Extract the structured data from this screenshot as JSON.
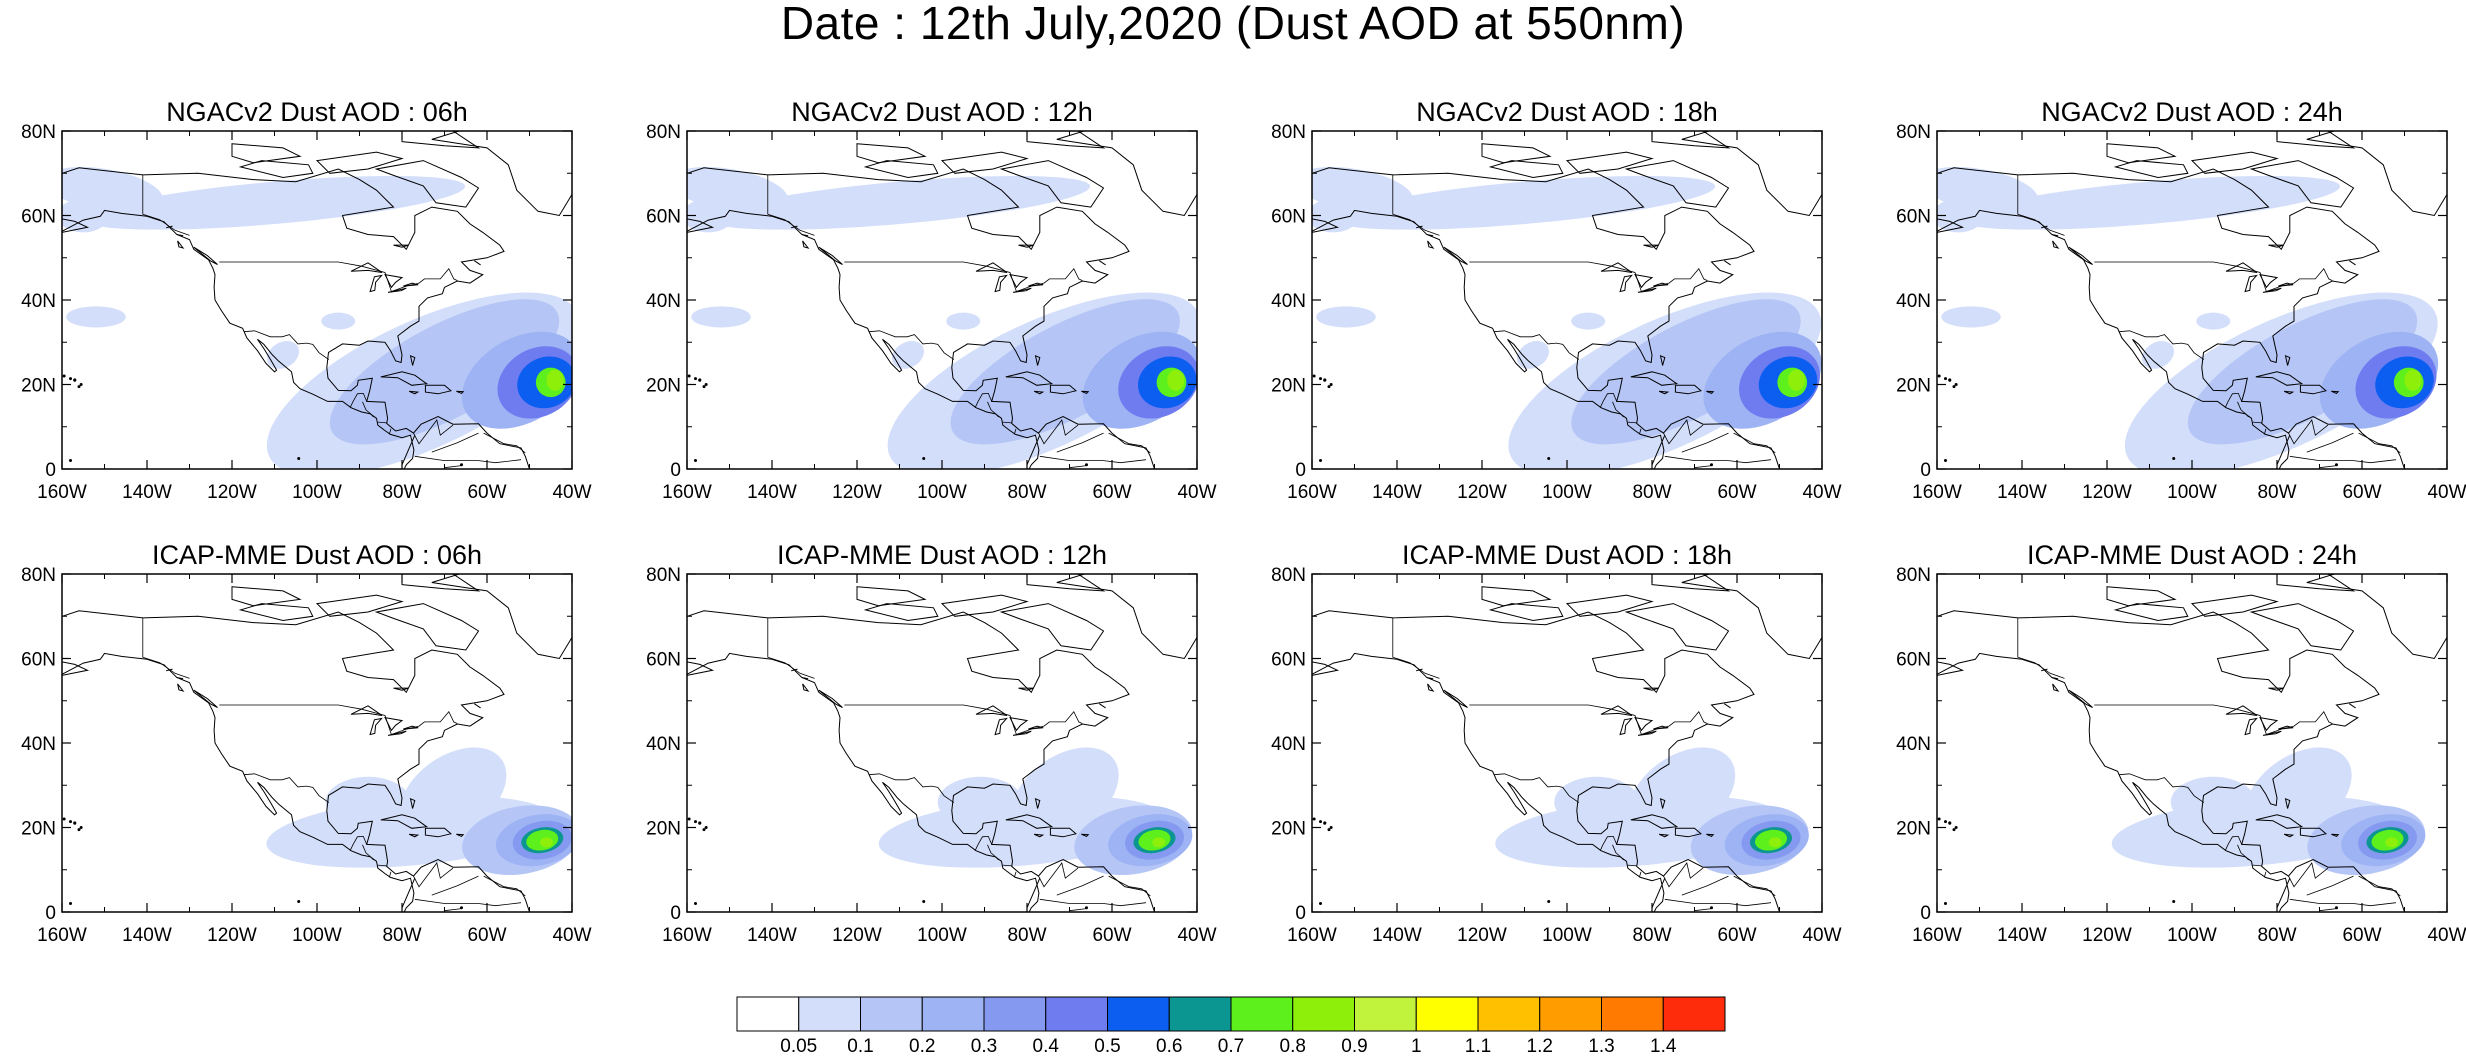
{
  "title": "Date : 12th July,2020 (Dust AOD at 550nm)",
  "panels": [
    {
      "title": "NGACv2 Dust AOD : 06h",
      "model": "ngac",
      "hour": 6
    },
    {
      "title": "NGACv2 Dust AOD : 12h",
      "model": "ngac",
      "hour": 12
    },
    {
      "title": "NGACv2 Dust AOD : 18h",
      "model": "ngac",
      "hour": 18
    },
    {
      "title": "NGACv2 Dust AOD : 24h",
      "model": "ngac",
      "hour": 24
    },
    {
      "title": "ICAP-MME Dust AOD : 06h",
      "model": "icap",
      "hour": 6
    },
    {
      "title": "ICAP-MME Dust AOD : 12h",
      "model": "icap",
      "hour": 12
    },
    {
      "title": "ICAP-MME Dust AOD : 18h",
      "model": "icap",
      "hour": 18
    },
    {
      "title": "ICAP-MME Dust AOD : 24h",
      "model": "icap",
      "hour": 24
    }
  ],
  "lat_ticks": [
    "80N",
    "60N",
    "40N",
    "20N",
    "0"
  ],
  "lon_ticks": [
    "160W",
    "140W",
    "120W",
    "100W",
    "80W",
    "60W",
    "40W"
  ],
  "colorbar": {
    "levels": [
      "0.05",
      "0.1",
      "0.2",
      "0.3",
      "0.4",
      "0.5",
      "0.6",
      "0.7",
      "0.8",
      "0.9",
      "1",
      "1.1",
      "1.2",
      "1.3",
      "1.4"
    ],
    "colors": [
      "#ffffff",
      "#d3defa",
      "#b5c6f6",
      "#9db3f4",
      "#8699f0",
      "#6f7cf0",
      "#0c5ef0",
      "#0c9692",
      "#5ef01c",
      "#8ef00a",
      "#c1f23c",
      "#ffff00",
      "#ffc000",
      "#ff9d00",
      "#ff7a00",
      "#ff2c0c"
    ]
  },
  "chart_data": {
    "type": "heatmap",
    "grid": "2 rows x 4 columns of map panels",
    "lon_range": [
      -160,
      -40
    ],
    "lat_range": [
      0,
      80
    ],
    "variable": "Dust AOD at 550nm",
    "date": "12th July,2020",
    "hours": [
      6,
      12,
      18,
      24
    ],
    "models": [
      "NGACv2",
      "ICAP-MME"
    ],
    "plume_core": {
      "NGACv2": [
        {
          "hour": 6,
          "lon": -44,
          "lat": 20,
          "max_aod": 0.9
        },
        {
          "hour": 12,
          "lon": -45,
          "lat": 20,
          "max_aod": 0.9
        },
        {
          "hour": 18,
          "lon": -46,
          "lat": 20,
          "max_aod": 0.9
        },
        {
          "hour": 24,
          "lon": -49,
          "lat": 21,
          "max_aod": 0.9
        }
      ],
      "ICAP-MME": [
        {
          "hour": 6,
          "lon": -47,
          "lat": 17,
          "max_aod": 0.9
        },
        {
          "hour": 12,
          "lon": -50,
          "lat": 17,
          "max_aod": 0.9
        },
        {
          "hour": 18,
          "lon": -52,
          "lat": 16,
          "max_aod": 0.9
        },
        {
          "hour": 24,
          "lon": -54,
          "lat": 15,
          "max_aod": 0.9
        }
      ]
    }
  }
}
